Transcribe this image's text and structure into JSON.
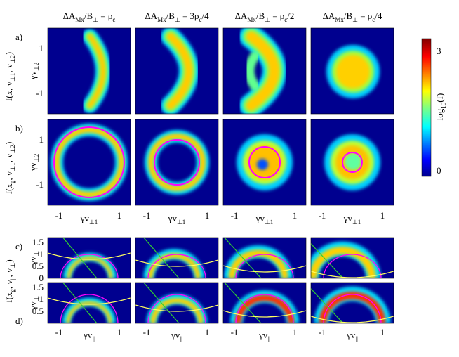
{
  "columns": [
    {
      "title": [
        "ΔA",
        "Mx",
        "/B",
        "⊥",
        " = ρ",
        "c"
      ]
    },
    {
      "title": [
        "ΔA",
        "Mx",
        "/B",
        "⊥",
        " = 3ρ",
        "c",
        "/4"
      ]
    },
    {
      "title": [
        "ΔA",
        "Mx",
        "/B",
        "⊥",
        " = ρ",
        "c",
        "/2"
      ]
    },
    {
      "title": [
        "ΔA",
        "Mx",
        "/B",
        "⊥",
        " = ρ",
        "c",
        "/4"
      ]
    }
  ],
  "rows": [
    {
      "letter": "a)",
      "ylabel": [
        "f(x, v",
        "⊥1",
        ", v",
        "⊥2",
        ")"
      ],
      "axis_label": [
        "γv",
        "⊥2"
      ],
      "yticks": [
        "1",
        "-1"
      ]
    },
    {
      "letter": "b)",
      "ylabel": [
        "f(x",
        "g",
        ", v",
        "⊥1",
        ", v",
        "⊥2",
        ")"
      ],
      "axis_label": [
        "γv",
        "⊥2"
      ],
      "yticks": [
        "1",
        "-1"
      ]
    },
    {
      "letter": "c)",
      "axis_label": [
        "γv",
        "⊥"
      ],
      "yticks": [
        "1.5",
        "1",
        "0.5",
        "0"
      ]
    },
    {
      "letter": "d)",
      "axis_label": [
        "γv",
        "⊥"
      ],
      "yticks": [
        "1.5",
        "1",
        "0.5"
      ]
    }
  ],
  "cd_ylabel": [
    "f(x",
    "g",
    ", v",
    "||",
    ", v",
    "⊥",
    ")"
  ],
  "xaxis": [
    {
      "label": [
        "γv",
        "⊥1"
      ],
      "ticks": [
        "-1",
        "1"
      ]
    },
    {
      "label": [
        "γv",
        "||"
      ],
      "ticks": [
        "-1",
        "1"
      ]
    }
  ],
  "colorbar": {
    "label": [
      "log",
      "10",
      "(f)"
    ],
    "ticks": [
      "3",
      "0"
    ]
  }
}
